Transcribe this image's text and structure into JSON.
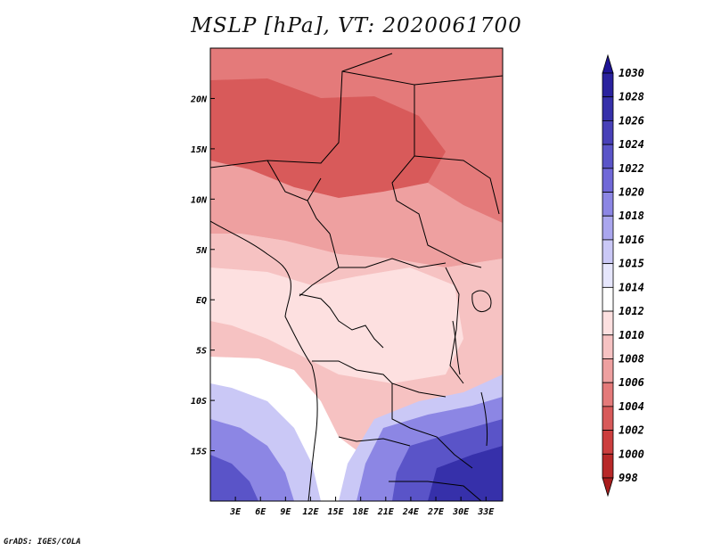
{
  "title": "MSLP [hPa], VT: 2020061700",
  "credit": "GrADS: IGES/COLA",
  "map": {
    "lon_range": [
      0,
      35
    ],
    "lat_range": [
      -20,
      25
    ],
    "lat_ticks": [
      {
        "value": 20,
        "label": "20N"
      },
      {
        "value": 15,
        "label": "15N"
      },
      {
        "value": 10,
        "label": "10N"
      },
      {
        "value": 5,
        "label": "5N"
      },
      {
        "value": 0,
        "label": "EQ"
      },
      {
        "value": -5,
        "label": "5S"
      },
      {
        "value": -10,
        "label": "10S"
      },
      {
        "value": -15,
        "label": "15S"
      }
    ],
    "lon_ticks": [
      {
        "value": 3,
        "label": "3E"
      },
      {
        "value": 6,
        "label": "6E"
      },
      {
        "value": 9,
        "label": "9E"
      },
      {
        "value": 12,
        "label": "12E"
      },
      {
        "value": 15,
        "label": "15E"
      },
      {
        "value": 18,
        "label": "18E"
      },
      {
        "value": 21,
        "label": "21E"
      },
      {
        "value": 24,
        "label": "24E"
      },
      {
        "value": 27,
        "label": "27E"
      },
      {
        "value": 30,
        "label": "30E"
      },
      {
        "value": 33,
        "label": "33E"
      }
    ]
  },
  "colorbar": {
    "levels": [
      {
        "label": "1030",
        "color": "#1e1496"
      },
      {
        "label": "1028",
        "color": "#2a229e"
      },
      {
        "label": "1026",
        "color": "#3630aa"
      },
      {
        "label": "1024",
        "color": "#4840b8"
      },
      {
        "label": "1022",
        "color": "#5a54c8"
      },
      {
        "label": "1020",
        "color": "#7068d8"
      },
      {
        "label": "1018",
        "color": "#8c86e4"
      },
      {
        "label": "1016",
        "color": "#aaa6ee"
      },
      {
        "label": "1015",
        "color": "#cac8f6"
      },
      {
        "label": "1014",
        "color": "#e6e6fc"
      },
      {
        "label": "1012",
        "color": "#ffffff"
      },
      {
        "label": "1010",
        "color": "#fde0e0"
      },
      {
        "label": "1008",
        "color": "#f6c2c2"
      },
      {
        "label": "1006",
        "color": "#eea0a0"
      },
      {
        "label": "1004",
        "color": "#e47a7a"
      },
      {
        "label": "1002",
        "color": "#d85a5a"
      },
      {
        "label": "1000",
        "color": "#cc3e3e"
      },
      {
        "label": "998",
        "color": "#b82828"
      }
    ],
    "bottom_color": "#a81c1c"
  },
  "regions": [
    {
      "name": "sahara-low",
      "color": "#e47a7a"
    },
    {
      "name": "central-low",
      "color": "#d85a5a"
    },
    {
      "name": "east-sahel",
      "color": "#eea0a0"
    },
    {
      "name": "gulf-guinea",
      "color": "#f6c2c2"
    },
    {
      "name": "congo-basin",
      "color": "#fde0e0"
    },
    {
      "name": "angola-coast",
      "color": "#ffffff"
    },
    {
      "name": "southern-high-1",
      "color": "#cac8f6"
    },
    {
      "name": "southern-high-2",
      "color": "#8c86e4"
    },
    {
      "name": "southern-high-3",
      "color": "#5a54c8"
    },
    {
      "name": "southern-high-4",
      "color": "#3630aa"
    }
  ]
}
